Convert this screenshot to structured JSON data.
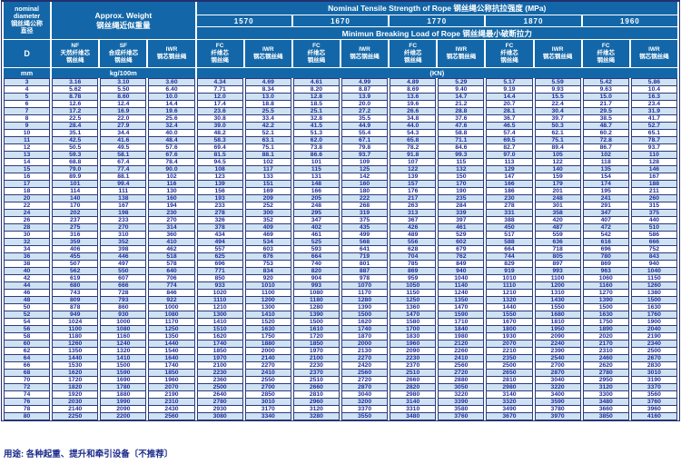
{
  "colors": {
    "header_bg": "#1367a8",
    "header_text": "#ffffff",
    "row_alt_bg": "#cfe2f3",
    "data_text": "#1f2e9b",
    "border": "#2c3a7c"
  },
  "header": {
    "diameter_title": "nominal\ndiameter\n钢丝绳公称\n直径",
    "weight_title": "Approx. Weight\n钢丝绳近似重量",
    "tensile_title": "Nominal Tensile Strength of Rope 钢丝绳公称抗拉强度 (MPa)",
    "strengths": [
      "1570",
      "1670",
      "1770",
      "1870",
      "1960"
    ],
    "breaking_title": "Minimun Breaking Load of Rope 钢丝绳最小破断拉力",
    "d_label": "D",
    "nf_label": "NF\n天然纤维芯\n钢丝绳",
    "sf_label": "SF\n合成纤维芯\n钢丝绳",
    "iwr_weight_label": "IWR\n钢芯钢丝绳",
    "fc_label": "FC\n纤维芯\n钢丝绳",
    "iwr_label": "IWR\n钢芯钢丝绳",
    "unit_mm": "mm",
    "unit_kg": "kg/100m",
    "unit_kn": "(KN)"
  },
  "rows": [
    [
      "3",
      "3.16",
      "3.10",
      "3.60",
      "4.34",
      "4.69",
      "4.61",
      "4.99",
      "4.89",
      "5.29",
      "5.17",
      "5.59",
      "5.42",
      "5.86"
    ],
    [
      "4",
      "5.62",
      "5.50",
      "6.40",
      "7.71",
      "8.34",
      "8.20",
      "8.87",
      "8.69",
      "9.40",
      "9.19",
      "9.93",
      "9.63",
      "10.4"
    ],
    [
      "5",
      "8.78",
      "8.60",
      "10.0",
      "12.0",
      "13.0",
      "12.8",
      "13.9",
      "13.6",
      "14.7",
      "14.4",
      "15.5",
      "15.0",
      "16.3"
    ],
    [
      "6",
      "12.6",
      "12.4",
      "14.4",
      "17.4",
      "18.8",
      "18.5",
      "20.0",
      "19.6",
      "21.2",
      "20.7",
      "22.4",
      "21.7",
      "23.4"
    ],
    [
      "7",
      "17.2",
      "16.9",
      "19.6",
      "23.6",
      "25.5",
      "25.1",
      "27.2",
      "26.6",
      "28.8",
      "28.1",
      "30.4",
      "29.5",
      "31.9"
    ],
    [
      "8",
      "22.5",
      "22.0",
      "25.6",
      "30.8",
      "33.4",
      "32.8",
      "35.5",
      "34.8",
      "37.6",
      "36.7",
      "39.7",
      "38.5",
      "41.7"
    ],
    [
      "9",
      "28.4",
      "27.9",
      "32.4",
      "39.0",
      "42.2",
      "41.5",
      "44.9",
      "44.0",
      "47.6",
      "46.5",
      "50.3",
      "48.7",
      "52.7"
    ],
    [
      "10",
      "35.1",
      "34.4",
      "40.0",
      "48.2",
      "52.1",
      "51.3",
      "55.4",
      "54.3",
      "58.8",
      "57.4",
      "62.1",
      "60.2",
      "65.1"
    ],
    [
      "11",
      "42.5",
      "41.6",
      "48.4",
      "58.3",
      "63.1",
      "62.0",
      "67.1",
      "65.8",
      "71.1",
      "69.5",
      "75.1",
      "72.8",
      "78.7"
    ],
    [
      "12",
      "50.5",
      "49.5",
      "57.6",
      "69.4",
      "75.1",
      "73.8",
      "79.8",
      "78.2",
      "84.6",
      "82.7",
      "89.4",
      "86.7",
      "93.7"
    ],
    [
      "13",
      "59.3",
      "58.1",
      "67.6",
      "81.5",
      "88.1",
      "86.6",
      "93.7",
      "91.8",
      "99.3",
      "97.0",
      "105",
      "102",
      "110"
    ],
    [
      "14",
      "68.8",
      "67.4",
      "78.4",
      "94.5",
      "102",
      "101",
      "109",
      "107",
      "115",
      "113",
      "122",
      "118",
      "128"
    ],
    [
      "15",
      "79.0",
      "77.4",
      "90.0",
      "108",
      "117",
      "115",
      "125",
      "122",
      "132",
      "129",
      "140",
      "135",
      "146"
    ],
    [
      "16",
      "89.9",
      "88.1",
      "102",
      "123",
      "133",
      "131",
      "142",
      "139",
      "150",
      "147",
      "159",
      "154",
      "167"
    ],
    [
      "17",
      "101",
      "99.4",
      "116",
      "139",
      "151",
      "148",
      "160",
      "157",
      "170",
      "166",
      "179",
      "174",
      "188"
    ],
    [
      "18",
      "114",
      "111",
      "130",
      "156",
      "169",
      "166",
      "180",
      "176",
      "190",
      "186",
      "201",
      "195",
      "211"
    ],
    [
      "20",
      "140",
      "138",
      "160",
      "193",
      "209",
      "205",
      "222",
      "217",
      "235",
      "230",
      "248",
      "241",
      "260"
    ],
    [
      "22",
      "170",
      "167",
      "194",
      "233",
      "252",
      "248",
      "268",
      "263",
      "284",
      "278",
      "301",
      "291",
      "315"
    ],
    [
      "24",
      "202",
      "198",
      "230",
      "278",
      "300",
      "295",
      "319",
      "313",
      "339",
      "331",
      "358",
      "347",
      "375"
    ],
    [
      "26",
      "237",
      "233",
      "270",
      "326",
      "352",
      "347",
      "375",
      "367",
      "397",
      "388",
      "420",
      "407",
      "440"
    ],
    [
      "28",
      "275",
      "270",
      "314",
      "378",
      "409",
      "402",
      "435",
      "426",
      "461",
      "450",
      "487",
      "472",
      "510"
    ],
    [
      "30",
      "316",
      "310",
      "360",
      "434",
      "469",
      "461",
      "499",
      "489",
      "529",
      "517",
      "559",
      "542",
      "586"
    ],
    [
      "32",
      "359",
      "352",
      "410",
      "494",
      "534",
      "525",
      "568",
      "556",
      "602",
      "588",
      "636",
      "616",
      "666"
    ],
    [
      "34",
      "406",
      "398",
      "462",
      "557",
      "603",
      "593",
      "641",
      "628",
      "679",
      "664",
      "718",
      "696",
      "752"
    ],
    [
      "36",
      "455",
      "446",
      "518",
      "625",
      "676",
      "664",
      "719",
      "704",
      "762",
      "744",
      "805",
      "780",
      "843"
    ],
    [
      "38",
      "507",
      "497",
      "578",
      "696",
      "753",
      "740",
      "801",
      "785",
      "849",
      "829",
      "897",
      "869",
      "940"
    ],
    [
      "40",
      "562",
      "550",
      "640",
      "771",
      "834",
      "820",
      "887",
      "869",
      "940",
      "919",
      "993",
      "963",
      "1040"
    ],
    [
      "42",
      "619",
      "607",
      "706",
      "850",
      "920",
      "904",
      "978",
      "959",
      "1040",
      "1010",
      "1100",
      "1060",
      "1150"
    ],
    [
      "44",
      "680",
      "666",
      "774",
      "933",
      "1010",
      "993",
      "1070",
      "1050",
      "1140",
      "1110",
      "1200",
      "1160",
      "1260"
    ],
    [
      "46",
      "743",
      "728",
      "846",
      "1020",
      "1100",
      "1080",
      "1170",
      "1150",
      "1240",
      "1210",
      "1310",
      "1270",
      "1380"
    ],
    [
      "48",
      "809",
      "793",
      "922",
      "1110",
      "1200",
      "1180",
      "1280",
      "1250",
      "1350",
      "1320",
      "1430",
      "1390",
      "1500"
    ],
    [
      "50",
      "878",
      "860",
      "1000",
      "1210",
      "1300",
      "1280",
      "1390",
      "1360",
      "1470",
      "1440",
      "1550",
      "1500",
      "1630"
    ],
    [
      "52",
      "949",
      "930",
      "1080",
      "1300",
      "1410",
      "1390",
      "1500",
      "1470",
      "1590",
      "1550",
      "1680",
      "1630",
      "1760"
    ],
    [
      "54",
      "1024",
      "1000",
      "1170",
      "1410",
      "1520",
      "1500",
      "1620",
      "1580",
      "1710",
      "1670",
      "1810",
      "1750",
      "1900"
    ],
    [
      "56",
      "1100",
      "1080",
      "1250",
      "1510",
      "1630",
      "1610",
      "1740",
      "1700",
      "1840",
      "1800",
      "1950",
      "1890",
      "2040"
    ],
    [
      "58",
      "1180",
      "1160",
      "1350",
      "1620",
      "1750",
      "1720",
      "1870",
      "1830",
      "1980",
      "1930",
      "2090",
      "2020",
      "2190"
    ],
    [
      "60",
      "1260",
      "1240",
      "1440",
      "1740",
      "1880",
      "1850",
      "2000",
      "1960",
      "2120",
      "2070",
      "2240",
      "2170",
      "2340"
    ],
    [
      "62",
      "1350",
      "1320",
      "1540",
      "1850",
      "2000",
      "1970",
      "2130",
      "2090",
      "2260",
      "2210",
      "2390",
      "2310",
      "2500"
    ],
    [
      "64",
      "1440",
      "1410",
      "1640",
      "1970",
      "2140",
      "2100",
      "2270",
      "2230",
      "2410",
      "2350",
      "2540",
      "2460",
      "2670"
    ],
    [
      "66",
      "1530",
      "1500",
      "1740",
      "2100",
      "2270",
      "2230",
      "2420",
      "2370",
      "2560",
      "2500",
      "2700",
      "2620",
      "2830"
    ],
    [
      "68",
      "1620",
      "1590",
      "1850",
      "2230",
      "2410",
      "2370",
      "2560",
      "2510",
      "2720",
      "2650",
      "2870",
      "2780",
      "3010"
    ],
    [
      "70",
      "1720",
      "1690",
      "1960",
      "2360",
      "2550",
      "2510",
      "2720",
      "2660",
      "2880",
      "2810",
      "3040",
      "2950",
      "3190"
    ],
    [
      "72",
      "1820",
      "1780",
      "2070",
      "2500",
      "2700",
      "2660",
      "2870",
      "2820",
      "3050",
      "2980",
      "3220",
      "3120",
      "3370"
    ],
    [
      "74",
      "1920",
      "1880",
      "2190",
      "2640",
      "2850",
      "2810",
      "3040",
      "2980",
      "3220",
      "3140",
      "3400",
      "3300",
      "3560"
    ],
    [
      "76",
      "2030",
      "1990",
      "2310",
      "2780",
      "3010",
      "2960",
      "3200",
      "3140",
      "3390",
      "3320",
      "3590",
      "3480",
      "3760"
    ],
    [
      "78",
      "2140",
      "2090",
      "2430",
      "2930",
      "3170",
      "3120",
      "3370",
      "3310",
      "3580",
      "3490",
      "3780",
      "3660",
      "3960"
    ],
    [
      "80",
      "2250",
      "2200",
      "2560",
      "3080",
      "3340",
      "3280",
      "3550",
      "3480",
      "3760",
      "3670",
      "3970",
      "3850",
      "4160"
    ]
  ],
  "footer": "用途: 各种起重、提升和牵引设备〔不推荐〕"
}
